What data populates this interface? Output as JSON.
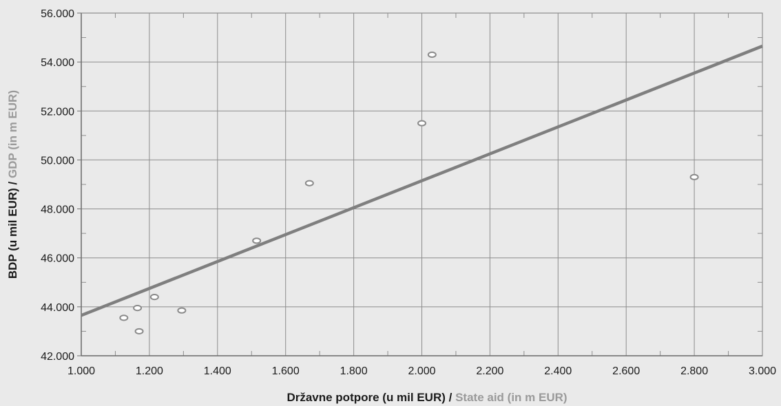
{
  "chart_data": {
    "type": "scatter",
    "title": "",
    "xlabel_primary": "Državne potpore (u mil EUR) / ",
    "xlabel_secondary": "State aid (in m EUR)",
    "ylabel_primary": "BDP (u mil EUR) / ",
    "ylabel_secondary": "GDP (in m EUR)",
    "xlim": [
      1000,
      3000
    ],
    "ylim": [
      42000,
      56000
    ],
    "xticks": [
      1000,
      1200,
      1400,
      1600,
      1800,
      2000,
      2200,
      2400,
      2600,
      2800,
      3000
    ],
    "yticks": [
      42000,
      44000,
      46000,
      48000,
      50000,
      52000,
      54000,
      56000
    ],
    "xtick_labels": [
      "1.000",
      "1.200",
      "1.400",
      "1.600",
      "1.800",
      "2.000",
      "2.200",
      "2.400",
      "2.600",
      "2.800",
      "3.000"
    ],
    "ytick_labels": [
      "42.000",
      "44.000",
      "46.000",
      "48.000",
      "50.000",
      "52.000",
      "54.000",
      "56.000"
    ],
    "grid": true,
    "points": [
      {
        "x": 1125,
        "y": 43550
      },
      {
        "x": 1165,
        "y": 43950
      },
      {
        "x": 1170,
        "y": 43000
      },
      {
        "x": 1215,
        "y": 44400
      },
      {
        "x": 1295,
        "y": 43850
      },
      {
        "x": 1515,
        "y": 46700
      },
      {
        "x": 1670,
        "y": 49050
      },
      {
        "x": 2000,
        "y": 51500
      },
      {
        "x": 2030,
        "y": 54300
      },
      {
        "x": 2800,
        "y": 49300
      }
    ],
    "trendline": {
      "x": [
        1000,
        3000
      ],
      "y": [
        43650,
        54650
      ]
    },
    "colors": {
      "background": "#eaeaea",
      "grid": "#8c8c8c",
      "axis": "#6e6e6e",
      "marker": "#8a8a8a",
      "trendline": "#7f7f7f",
      "title_primary": "#1a1a1a",
      "title_secondary": "#9a9a9a"
    }
  }
}
